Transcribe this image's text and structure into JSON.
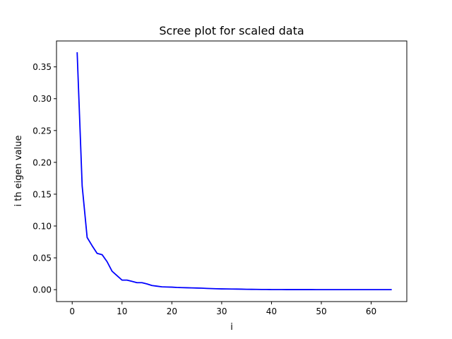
{
  "chart_data": {
    "type": "line",
    "title": "Scree plot for scaled data",
    "xlabel": "i",
    "ylabel": "i th eigen value",
    "xlim": [
      -3.15,
      67.15
    ],
    "ylim": [
      -0.0187,
      0.3907
    ],
    "xticks": [
      0,
      10,
      20,
      30,
      40,
      50,
      60
    ],
    "yticks": [
      0.0,
      0.05,
      0.1,
      0.15,
      0.2,
      0.25,
      0.3,
      0.35
    ],
    "ytick_labels": [
      "0.00",
      "0.05",
      "0.10",
      "0.15",
      "0.20",
      "0.25",
      "0.30",
      "0.35"
    ],
    "grid": false,
    "series": [
      {
        "color": "#0000ff",
        "x": [
          1,
          2,
          3,
          4,
          5,
          6,
          7,
          8,
          9,
          10,
          11,
          12,
          13,
          14,
          15,
          16,
          17,
          18,
          19,
          20,
          21,
          22,
          23,
          24,
          25,
          26,
          27,
          28,
          29,
          30,
          31,
          32,
          33,
          34,
          35,
          36,
          37,
          38,
          39,
          40,
          41,
          42,
          43,
          44,
          45,
          46,
          47,
          48,
          49,
          50,
          51,
          52,
          53,
          54,
          55,
          56,
          57,
          58,
          59,
          60,
          61,
          62,
          63,
          64
        ],
        "values": [
          0.372,
          0.163,
          0.082,
          0.069,
          0.057,
          0.055,
          0.044,
          0.029,
          0.022,
          0.015,
          0.015,
          0.013,
          0.011,
          0.011,
          0.009,
          0.0065,
          0.0055,
          0.0045,
          0.0042,
          0.004,
          0.0035,
          0.0032,
          0.003,
          0.0028,
          0.0026,
          0.0024,
          0.002,
          0.0017,
          0.0014,
          0.0012,
          0.0011,
          0.001,
          0.0009,
          0.0008,
          0.0006,
          0.0005,
          0.0004,
          0.0003,
          0.0003,
          0.0002,
          0.0002,
          0.0002,
          0.0001,
          0.0001,
          0.0001,
          0.0001,
          0.0001,
          0.0001,
          0,
          0,
          0,
          0,
          0,
          0,
          0,
          0,
          0,
          0,
          0,
          0,
          0,
          0,
          0,
          0
        ]
      }
    ]
  }
}
